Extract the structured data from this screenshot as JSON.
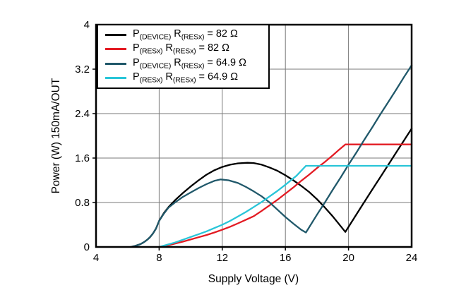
{
  "legend": {
    "items": [
      {
        "p": "P",
        "p_sub": "(DEVICE)",
        "r": "R",
        "r_sub": "(RESx)",
        "value": "= 82 Ω"
      },
      {
        "p": "P",
        "p_sub": "(RESx)",
        "r": "R",
        "r_sub": "(RESx)",
        "value": "= 82 Ω"
      },
      {
        "p": "P",
        "p_sub": "(DEVICE)",
        "r": "R",
        "r_sub": "(RESx)",
        "value": "= 64.9 Ω"
      },
      {
        "p": "P",
        "p_sub": "(RESx)",
        "r": "R",
        "r_sub": "(RESx)",
        "value": "= 64.9 Ω"
      }
    ]
  },
  "chart_data": {
    "type": "line",
    "title": "",
    "xlabel": "Supply Voltage (V)",
    "ylabel": "Power (W) 150mA/OUT",
    "xlim": [
      4,
      24
    ],
    "ylim": [
      0,
      4
    ],
    "x_ticks": [
      4,
      8,
      12,
      16,
      20,
      24
    ],
    "x_tick_labels": [
      "4",
      "8",
      "12",
      "16",
      "20",
      "24"
    ],
    "y_ticks": [
      0,
      0.8,
      1.6,
      2.4,
      3.2,
      4
    ],
    "y_tick_labels": [
      "0",
      "0.8",
      "1.6",
      "2.4",
      "3.2",
      "4"
    ],
    "grid": true,
    "grid_color": "#7a7a7a",
    "axis_color": "#000000",
    "legend_position": "top-left",
    "series": [
      {
        "name": "P(DEVICE) R(RESx) = 82 Ω",
        "color": "#000000",
        "points": [
          [
            6.2,
            0
          ],
          [
            6.5,
            0.02
          ],
          [
            6.8,
            0.05
          ],
          [
            7.0,
            0.08
          ],
          [
            7.2,
            0.12
          ],
          [
            7.4,
            0.17
          ],
          [
            7.6,
            0.24
          ],
          [
            7.8,
            0.33
          ],
          [
            8.0,
            0.47
          ],
          [
            8.3,
            0.61
          ],
          [
            8.6,
            0.72
          ],
          [
            9,
            0.84
          ],
          [
            9.5,
            0.97
          ],
          [
            10,
            1.09
          ],
          [
            10.5,
            1.2
          ],
          [
            11,
            1.3
          ],
          [
            11.5,
            1.38
          ],
          [
            12,
            1.44
          ],
          [
            12.5,
            1.48
          ],
          [
            13,
            1.505
          ],
          [
            13.6,
            1.515
          ],
          [
            14,
            1.51
          ],
          [
            14.5,
            1.48
          ],
          [
            15,
            1.43
          ],
          [
            15.5,
            1.37
          ],
          [
            16,
            1.29
          ],
          [
            16.5,
            1.2
          ],
          [
            17,
            1.1
          ],
          [
            17.5,
            0.99
          ],
          [
            18,
            0.86
          ],
          [
            18.5,
            0.71
          ],
          [
            19,
            0.55
          ],
          [
            19.4,
            0.41
          ],
          [
            19.8,
            0.27
          ],
          [
            20.4,
            0.54
          ],
          [
            21,
            0.81
          ],
          [
            21.5,
            1.03
          ],
          [
            22,
            1.25
          ],
          [
            22.5,
            1.47
          ],
          [
            23,
            1.69
          ],
          [
            23.5,
            1.91
          ],
          [
            24,
            2.13
          ]
        ]
      },
      {
        "name": "P(RESx) R(RESx) = 82 Ω",
        "color": "#e31b23",
        "points": [
          [
            8,
            0
          ],
          [
            8.5,
            0.025
          ],
          [
            9,
            0.06
          ],
          [
            9.5,
            0.095
          ],
          [
            10,
            0.135
          ],
          [
            10.5,
            0.175
          ],
          [
            11,
            0.215
          ],
          [
            11.5,
            0.26
          ],
          [
            12,
            0.31
          ],
          [
            12.5,
            0.365
          ],
          [
            13,
            0.425
          ],
          [
            13.5,
            0.49
          ],
          [
            14,
            0.555
          ],
          [
            14.5,
            0.65
          ],
          [
            15,
            0.75
          ],
          [
            15.5,
            0.85
          ],
          [
            16,
            0.96
          ],
          [
            16.5,
            1.07
          ],
          [
            17,
            1.19
          ],
          [
            17.5,
            1.3
          ],
          [
            18,
            1.42
          ],
          [
            18.5,
            1.53
          ],
          [
            19,
            1.65
          ],
          [
            19.4,
            1.75
          ],
          [
            19.8,
            1.845
          ],
          [
            24,
            1.845
          ]
        ]
      },
      {
        "name": "P(DEVICE) R(RESx) = 64.9 Ω",
        "color": "#20586a",
        "points": [
          [
            6.2,
            0
          ],
          [
            6.5,
            0.02
          ],
          [
            6.8,
            0.05
          ],
          [
            7.0,
            0.08
          ],
          [
            7.2,
            0.12
          ],
          [
            7.4,
            0.17
          ],
          [
            7.6,
            0.24
          ],
          [
            7.8,
            0.33
          ],
          [
            8.0,
            0.47
          ],
          [
            8.3,
            0.6
          ],
          [
            8.6,
            0.71
          ],
          [
            9,
            0.8
          ],
          [
            9.5,
            0.9
          ],
          [
            10,
            0.98
          ],
          [
            10.5,
            1.06
          ],
          [
            11,
            1.13
          ],
          [
            11.5,
            1.19
          ],
          [
            11.9,
            1.215
          ],
          [
            12.4,
            1.2
          ],
          [
            13,
            1.15
          ],
          [
            13.5,
            1.08
          ],
          [
            14,
            1.0
          ],
          [
            14.5,
            0.91
          ],
          [
            15,
            0.8
          ],
          [
            15.5,
            0.67
          ],
          [
            16,
            0.54
          ],
          [
            16.5,
            0.42
          ],
          [
            17,
            0.31
          ],
          [
            17.3,
            0.26
          ],
          [
            18,
            0.58
          ],
          [
            18.5,
            0.8
          ],
          [
            19,
            1.03
          ],
          [
            19.5,
            1.25
          ],
          [
            20,
            1.48
          ],
          [
            20.5,
            1.7
          ],
          [
            21,
            1.93
          ],
          [
            21.5,
            2.15
          ],
          [
            22,
            2.38
          ],
          [
            22.5,
            2.6
          ],
          [
            23,
            2.82
          ],
          [
            23.5,
            3.05
          ],
          [
            24,
            3.27
          ]
        ]
      },
      {
        "name": "P(RESx) R(RESx) = 64.9 Ω",
        "color": "#29c5d8",
        "points": [
          [
            8,
            0
          ],
          [
            8.5,
            0.04
          ],
          [
            9,
            0.08
          ],
          [
            9.5,
            0.13
          ],
          [
            10,
            0.18
          ],
          [
            10.5,
            0.23
          ],
          [
            11,
            0.28
          ],
          [
            11.5,
            0.34
          ],
          [
            12,
            0.4
          ],
          [
            12.5,
            0.47
          ],
          [
            13,
            0.55
          ],
          [
            13.5,
            0.63
          ],
          [
            14,
            0.72
          ],
          [
            14.5,
            0.81
          ],
          [
            15,
            0.91
          ],
          [
            15.5,
            1.01
          ],
          [
            16,
            1.12
          ],
          [
            16.7,
            1.28
          ],
          [
            17.3,
            1.46
          ],
          [
            24,
            1.46
          ]
        ]
      }
    ]
  }
}
